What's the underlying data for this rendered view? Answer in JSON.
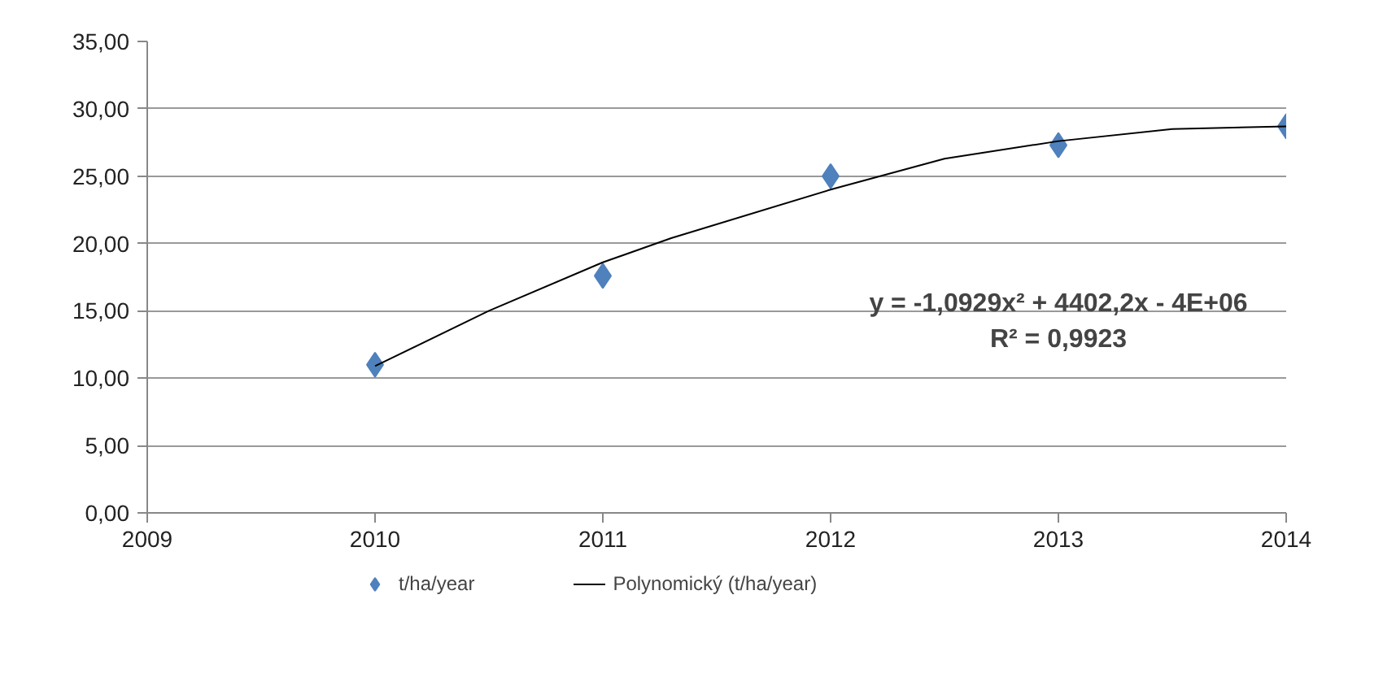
{
  "chart_data": {
    "type": "scatter",
    "xlim": [
      2009,
      2014
    ],
    "xticks": [
      2009,
      2010,
      2011,
      2012,
      2013,
      2014
    ],
    "ylim": [
      0,
      35
    ],
    "yticks": [
      {
        "value": 0,
        "label": "0,00"
      },
      {
        "value": 5,
        "label": "5,00"
      },
      {
        "value": 10,
        "label": "10,00"
      },
      {
        "value": 15,
        "label": "15,00"
      },
      {
        "value": 20,
        "label": "20,00"
      },
      {
        "value": 25,
        "label": "25,00"
      },
      {
        "value": 30,
        "label": "30,00"
      },
      {
        "value": 35,
        "label": "35,00"
      }
    ],
    "grid": "y",
    "legend": "bottom",
    "series": [
      {
        "name": "t/ha/year",
        "type": "scatter",
        "marker": "diamond",
        "color": "#4f81bd",
        "x": [
          2010,
          2011,
          2012,
          2013,
          2014
        ],
        "values": [
          11.0,
          17.6,
          25.0,
          27.3,
          28.7
        ]
      },
      {
        "name": "Polynomický (t/ha/year)",
        "type": "line",
        "marker": "none",
        "line_style": "solid",
        "color": "#000000",
        "x": [
          2010,
          2010.5,
          2011,
          2011.3,
          2012,
          2012.5,
          2013,
          2013.5,
          2014
        ],
        "values": [
          10.9,
          15.0,
          18.6,
          20.4,
          24.0,
          26.3,
          27.6,
          28.5,
          28.7
        ]
      }
    ],
    "annotations": [
      "y = -1,0929x² + 4402,2x - 4E+06",
      "R² = 0,9923"
    ]
  }
}
